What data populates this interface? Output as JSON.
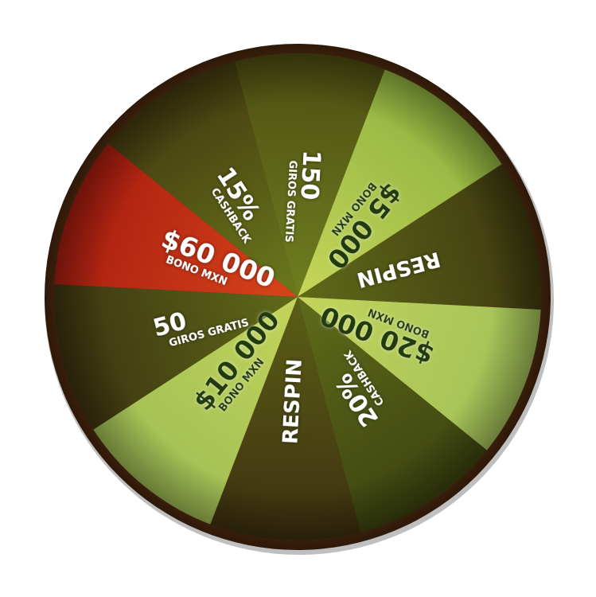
{
  "wheel": {
    "start_angle_deg": -105,
    "rim_color": "#4a2a12",
    "segments": [
      {
        "lines": [
          "150",
          "GIROS GRATIS"
        ],
        "text_color": "#ffffff",
        "fill_inner": "#6f7f1f",
        "fill_outer": "#4d4d12"
      },
      {
        "lines": [
          "$5 000",
          "BONO MXN"
        ],
        "text_color": "#203a0c",
        "fill_inner": "#c6d65a",
        "fill_outer": "#8fb23f"
      },
      {
        "lines": [
          "RESPIN"
        ],
        "text_color": "#ffffff",
        "fill_inner": "#5e6a19",
        "fill_outer": "#3f3a10"
      },
      {
        "lines": [
          "$20 000",
          "BONO MXN"
        ],
        "text_color": "#203a0c",
        "fill_inner": "#c3d45a",
        "fill_outer": "#a2c059"
      },
      {
        "lines": [
          "20%",
          "CASHBACK"
        ],
        "text_color": "#ffffff",
        "fill_inner": "#5f6b1a",
        "fill_outer": "#3d4410"
      },
      {
        "lines": [
          "RESPIN"
        ],
        "text_color": "#ffffff",
        "fill_inner": "#5a5f16",
        "fill_outer": "#3e3010"
      },
      {
        "lines": [
          "$10 000",
          "BONO MXN"
        ],
        "text_color": "#203a0c",
        "fill_inner": "#c3d45a",
        "fill_outer": "#9fbd55"
      },
      {
        "lines": [
          "50",
          "GIROS GRATIS"
        ],
        "text_color": "#ffffff",
        "fill_inner": "#5f6a19",
        "fill_outer": "#3c3410"
      },
      {
        "lines": [
          "$60 000",
          "BONO MXN"
        ],
        "text_color": "#ffffff",
        "fill_inner": "#d9441a",
        "fill_outer": "#a81d10"
      },
      {
        "lines": [
          "15%",
          "CASHBACK"
        ],
        "text_color": "#ffffff",
        "fill_inner": "#6b7a1c",
        "fill_outer": "#433a10"
      }
    ]
  }
}
